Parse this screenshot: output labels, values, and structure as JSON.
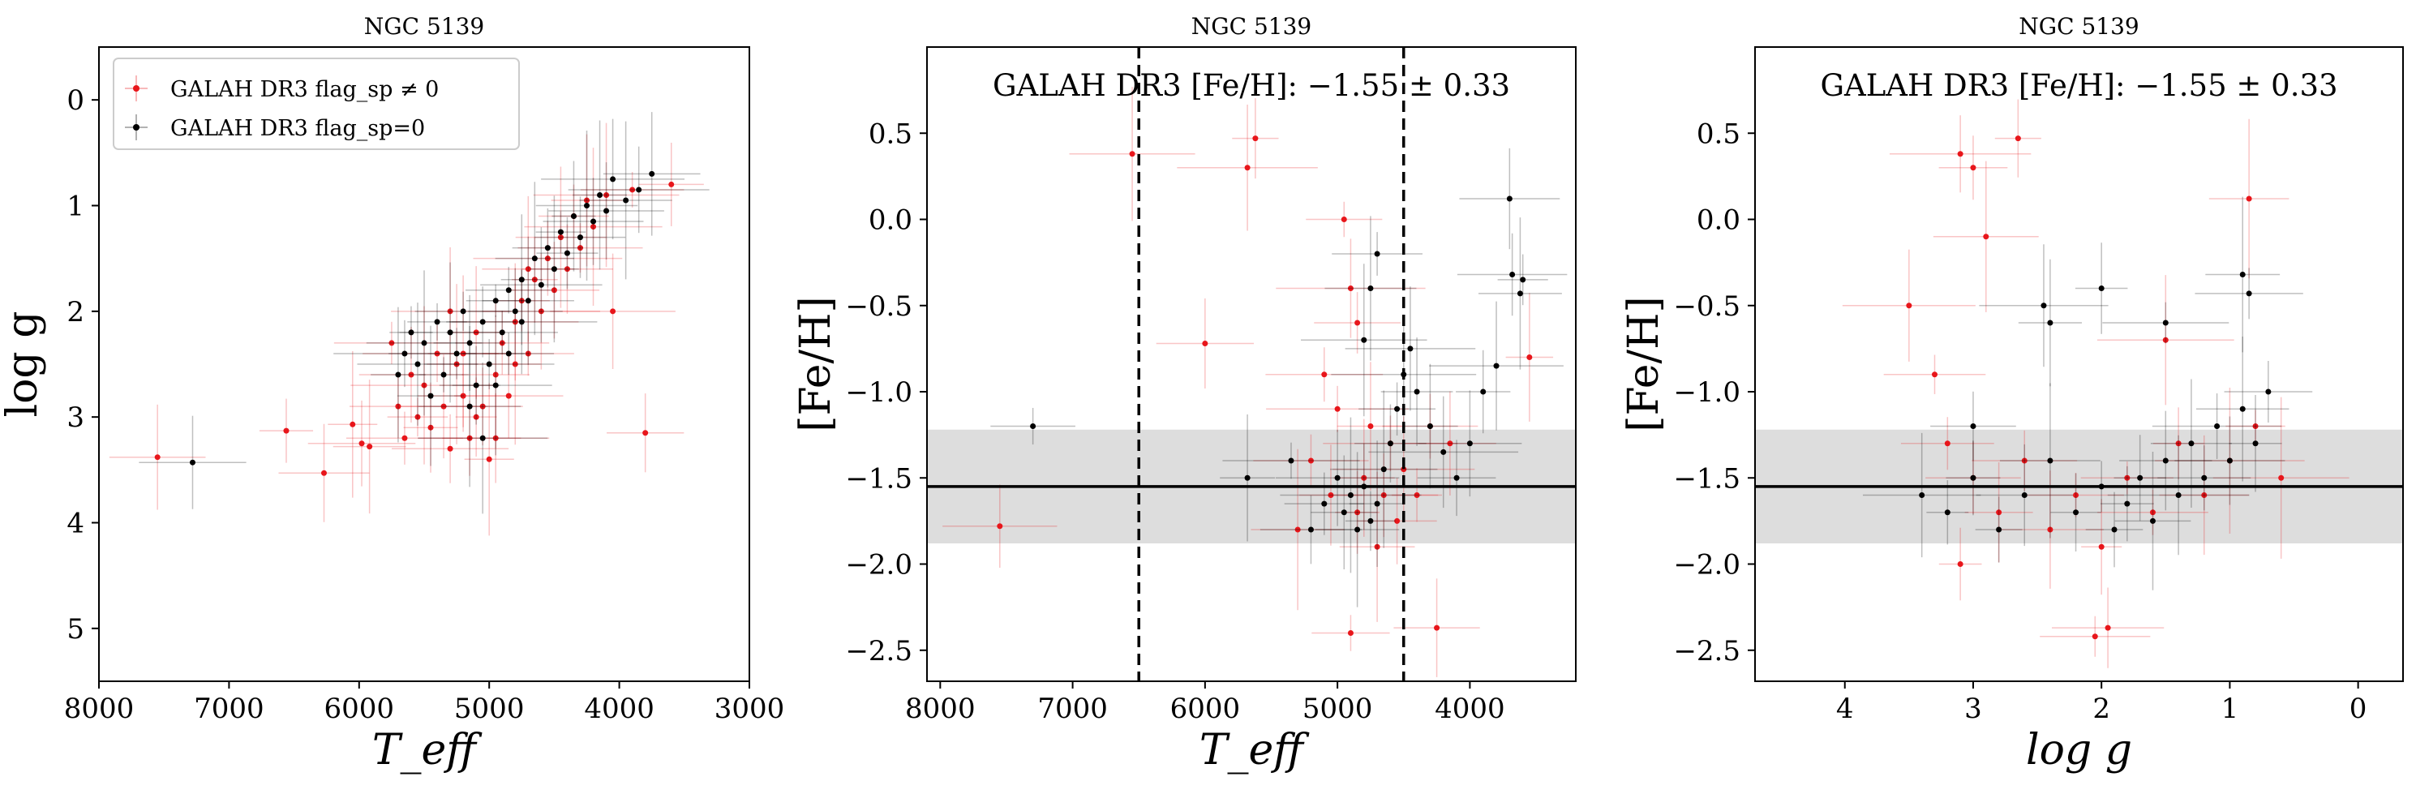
{
  "colors": {
    "flagged": "#e8161b",
    "clean": "#000000",
    "band": "#dddddd"
  },
  "chart_data": [
    {
      "type": "scatter",
      "title": "NGC 5139",
      "xlabel": "T_eff",
      "ylabel": "log g",
      "xlim": [
        8000,
        3000
      ],
      "ylim": [
        5.5,
        -0.5
      ],
      "xticks": [
        "8000",
        "7000",
        "6000",
        "5000",
        "4000",
        "3000"
      ],
      "yticks": [
        "0",
        "1",
        "2",
        "3",
        "4",
        "5"
      ],
      "grid": false,
      "legend_position": "top-left",
      "legend": [
        "GALAH DR3 flag_sp ≠ 0",
        "GALAH DR3 flag_sp=0"
      ],
      "series": [
        {
          "name": "GALAH DR3 flag_sp ≠ 0",
          "color": "#e8161b",
          "points": [
            [
              7550,
              3.38
            ],
            [
              6560,
              3.13
            ],
            [
              6270,
              3.53
            ],
            [
              6050,
              3.07
            ],
            [
              5980,
              3.25
            ],
            [
              5920,
              3.28
            ],
            [
              5750,
              2.3
            ],
            [
              5700,
              2.9
            ],
            [
              5650,
              3.2
            ],
            [
              5600,
              2.6
            ],
            [
              5550,
              3.0
            ],
            [
              5500,
              2.7
            ],
            [
              5450,
              3.1
            ],
            [
              5400,
              2.4
            ],
            [
              5350,
              2.9
            ],
            [
              5300,
              3.3
            ],
            [
              5250,
              2.5
            ],
            [
              5200,
              2.8
            ],
            [
              5150,
              3.2
            ],
            [
              5100,
              2.2
            ],
            [
              5050,
              2.9
            ],
            [
              5000,
              3.4
            ],
            [
              4950,
              2.6
            ],
            [
              4900,
              2.3
            ],
            [
              4850,
              2.8
            ],
            [
              4800,
              2.1
            ],
            [
              4750,
              1.9
            ],
            [
              4700,
              2.4
            ],
            [
              4650,
              1.7
            ],
            [
              4600,
              2.0
            ],
            [
              4550,
              1.5
            ],
            [
              4500,
              1.8
            ],
            [
              4450,
              1.3
            ],
            [
              4400,
              1.6
            ],
            [
              4350,
              1.1
            ],
            [
              4300,
              1.4
            ],
            [
              4250,
              0.95
            ],
            [
              4200,
              1.2
            ],
            [
              4100,
              0.9
            ],
            [
              4050,
              2.0
            ],
            [
              3900,
              0.85
            ],
            [
              3800,
              3.15
            ],
            [
              3600,
              0.8
            ],
            [
              5300,
              2.0
            ],
            [
              5200,
              2.4
            ],
            [
              5100,
              3.0
            ],
            [
              4950,
              3.2
            ],
            [
              4800,
              2.5
            ],
            [
              4700,
              1.6
            ]
          ]
        },
        {
          "name": "GALAH DR3 flag_sp=0",
          "color": "#000000",
          "points": [
            [
              7280,
              3.43
            ],
            [
              5700,
              2.6
            ],
            [
              5650,
              2.4
            ],
            [
              5600,
              2.2
            ],
            [
              5550,
              2.5
            ],
            [
              5500,
              2.3
            ],
            [
              5450,
              2.8
            ],
            [
              5400,
              2.1
            ],
            [
              5350,
              2.6
            ],
            [
              5300,
              2.2
            ],
            [
              5250,
              2.4
            ],
            [
              5200,
              2.0
            ],
            [
              5150,
              2.3
            ],
            [
              5100,
              2.7
            ],
            [
              5050,
              2.1
            ],
            [
              5000,
              2.5
            ],
            [
              4950,
              1.9
            ],
            [
              4900,
              2.2
            ],
            [
              4850,
              1.8
            ],
            [
              4800,
              2.0
            ],
            [
              4750,
              1.7
            ],
            [
              4700,
              1.9
            ],
            [
              4650,
              1.5
            ],
            [
              4600,
              1.75
            ],
            [
              4550,
              1.4
            ],
            [
              4500,
              1.6
            ],
            [
              4450,
              1.25
            ],
            [
              4400,
              1.45
            ],
            [
              4350,
              1.1
            ],
            [
              4300,
              1.3
            ],
            [
              4250,
              1.0
            ],
            [
              4200,
              1.15
            ],
            [
              4150,
              0.9
            ],
            [
              4100,
              1.05
            ],
            [
              4050,
              0.75
            ],
            [
              3950,
              0.95
            ],
            [
              3850,
              0.85
            ],
            [
              3750,
              0.7
            ],
            [
              5050,
              3.2
            ],
            [
              5150,
              2.9
            ],
            [
              4950,
              2.7
            ],
            [
              4850,
              2.4
            ],
            [
              4750,
              2.1
            ]
          ]
        }
      ]
    },
    {
      "type": "scatter",
      "title": "NGC 5139",
      "xlabel": "T_eff",
      "ylabel": "[Fe/H]",
      "xlim": [
        8100,
        3200
      ],
      "ylim": [
        -2.68,
        1.0
      ],
      "xticks": [
        "8000",
        "7000",
        "6000",
        "5000",
        "4000"
      ],
      "yticks": [
        "0.5",
        "0.0",
        "−0.5",
        "−1.0",
        "−1.5",
        "−2.0",
        "−2.5"
      ],
      "annotation": "GALAH DR3 [Fe/H]: −1.55 ± 0.33",
      "mean": -1.55,
      "sigma": 0.33,
      "vlines": [
        6500,
        4500
      ],
      "grid": false,
      "series": [
        {
          "color": "#e8161b",
          "points": [
            [
              7550,
              -1.78
            ],
            [
              6550,
              0.38
            ],
            [
              6000,
              -0.72
            ],
            [
              5680,
              0.3
            ],
            [
              5620,
              0.47
            ],
            [
              5300,
              -1.8
            ],
            [
              5200,
              -1.4
            ],
            [
              5100,
              -0.9
            ],
            [
              5050,
              -1.6
            ],
            [
              4950,
              0.0
            ],
            [
              4900,
              -0.4
            ],
            [
              4850,
              -1.7
            ],
            [
              4800,
              -1.5
            ],
            [
              4750,
              -1.2
            ],
            [
              4700,
              -1.9
            ],
            [
              4650,
              -1.6
            ],
            [
              4600,
              -1.3
            ],
            [
              4550,
              -1.75
            ],
            [
              4500,
              -1.45
            ],
            [
              4400,
              -1.6
            ],
            [
              4300,
              -1.2
            ],
            [
              4250,
              -2.37
            ],
            [
              4900,
              -2.4
            ],
            [
              3550,
              -0.8
            ],
            [
              4150,
              -1.3
            ],
            [
              5000,
              -1.1
            ],
            [
              4850,
              -0.6
            ]
          ]
        },
        {
          "color": "#000000",
          "points": [
            [
              7300,
              -1.2
            ],
            [
              5680,
              -1.5
            ],
            [
              5350,
              -1.4
            ],
            [
              5200,
              -1.8
            ],
            [
              5100,
              -1.65
            ],
            [
              5000,
              -1.5
            ],
            [
              4950,
              -1.7
            ],
            [
              4900,
              -1.6
            ],
            [
              4850,
              -1.8
            ],
            [
              4800,
              -1.55
            ],
            [
              4750,
              -1.75
            ],
            [
              4700,
              -1.65
            ],
            [
              4650,
              -1.45
            ],
            [
              4600,
              -1.3
            ],
            [
              4550,
              -1.1
            ],
            [
              4500,
              -0.9
            ],
            [
              4450,
              -0.75
            ],
            [
              4400,
              -1.0
            ],
            [
              4300,
              -1.2
            ],
            [
              4200,
              -1.35
            ],
            [
              4100,
              -1.5
            ],
            [
              4000,
              -1.3
            ],
            [
              3900,
              -1.0
            ],
            [
              3800,
              -0.85
            ],
            [
              3700,
              0.12
            ],
            [
              3680,
              -0.32
            ],
            [
              3600,
              -0.35
            ],
            [
              3620,
              -0.43
            ],
            [
              4800,
              -0.7
            ],
            [
              4750,
              -0.4
            ],
            [
              4700,
              -0.2
            ]
          ]
        }
      ]
    },
    {
      "type": "scatter",
      "title": "NGC 5139",
      "xlabel": "log g",
      "ylabel": "[Fe/H]",
      "xlim": [
        4.7,
        -0.35
      ],
      "ylim": [
        -2.68,
        1.0
      ],
      "xticks": [
        "4",
        "3",
        "2",
        "1",
        "0"
      ],
      "yticks": [
        "0.5",
        "0.0",
        "−0.5",
        "−1.0",
        "−1.5",
        "−2.0",
        "−2.5"
      ],
      "annotation": "GALAH DR3 [Fe/H]: −1.55 ± 0.33",
      "mean": -1.55,
      "sigma": 0.33,
      "grid": false,
      "series": [
        {
          "color": "#e8161b",
          "points": [
            [
              3.1,
              0.38
            ],
            [
              3.0,
              0.3
            ],
            [
              2.65,
              0.47
            ],
            [
              0.85,
              0.12
            ],
            [
              3.5,
              -0.5
            ],
            [
              3.3,
              -0.9
            ],
            [
              3.2,
              -1.3
            ],
            [
              3.0,
              -1.5
            ],
            [
              2.8,
              -1.7
            ],
            [
              2.6,
              -1.4
            ],
            [
              2.4,
              -1.8
            ],
            [
              2.2,
              -1.6
            ],
            [
              2.0,
              -1.9
            ],
            [
              1.8,
              -1.5
            ],
            [
              1.6,
              -1.7
            ],
            [
              1.4,
              -1.3
            ],
            [
              1.2,
              -1.6
            ],
            [
              1.0,
              -1.4
            ],
            [
              0.8,
              -1.2
            ],
            [
              0.6,
              -1.5
            ],
            [
              1.5,
              -0.7
            ],
            [
              2.9,
              -0.1
            ],
            [
              3.1,
              -2.0
            ],
            [
              2.05,
              -2.42
            ],
            [
              1.95,
              -2.37
            ]
          ]
        },
        {
          "color": "#000000",
          "points": [
            [
              0.9,
              -0.32
            ],
            [
              0.85,
              -0.43
            ],
            [
              3.4,
              -1.6
            ],
            [
              3.2,
              -1.7
            ],
            [
              3.0,
              -1.5
            ],
            [
              2.8,
              -1.8
            ],
            [
              2.6,
              -1.6
            ],
            [
              2.4,
              -1.4
            ],
            [
              2.2,
              -1.7
            ],
            [
              2.0,
              -1.55
            ],
            [
              1.9,
              -1.8
            ],
            [
              1.8,
              -1.65
            ],
            [
              1.7,
              -1.5
            ],
            [
              1.6,
              -1.75
            ],
            [
              1.5,
              -1.4
            ],
            [
              1.4,
              -1.6
            ],
            [
              1.3,
              -1.3
            ],
            [
              1.2,
              -1.5
            ],
            [
              1.1,
              -1.2
            ],
            [
              1.0,
              -1.4
            ],
            [
              0.9,
              -1.1
            ],
            [
              0.8,
              -1.3
            ],
            [
              0.7,
              -1.0
            ],
            [
              2.45,
              -0.5
            ],
            [
              2.4,
              -0.6
            ],
            [
              2.0,
              -0.4
            ],
            [
              1.5,
              -0.6
            ],
            [
              3.0,
              -1.2
            ]
          ]
        }
      ]
    }
  ]
}
